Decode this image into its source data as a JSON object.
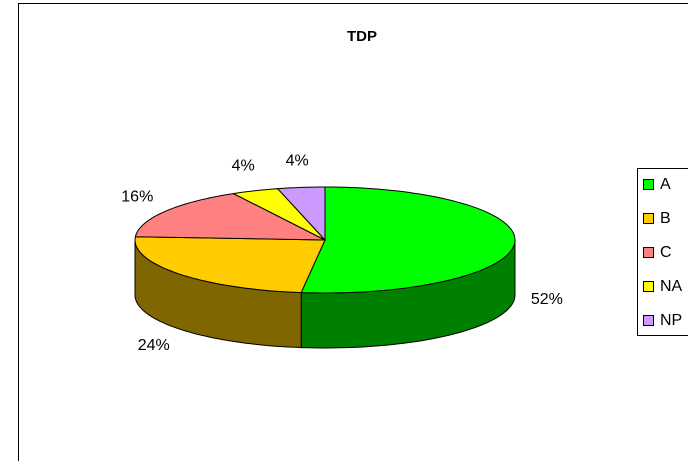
{
  "chart_data": {
    "type": "pie",
    "title": "TDP",
    "categories": [
      "A",
      "B",
      "C",
      "NA",
      "NP"
    ],
    "values": [
      52,
      24,
      16,
      4,
      4
    ],
    "value_labels": [
      "52%",
      "24%",
      "16%",
      "4%",
      "4%"
    ],
    "colors": [
      "#00ff00",
      "#ffcc00",
      "#ff8080",
      "#ffff00",
      "#cc99ff"
    ],
    "legend": "right"
  }
}
